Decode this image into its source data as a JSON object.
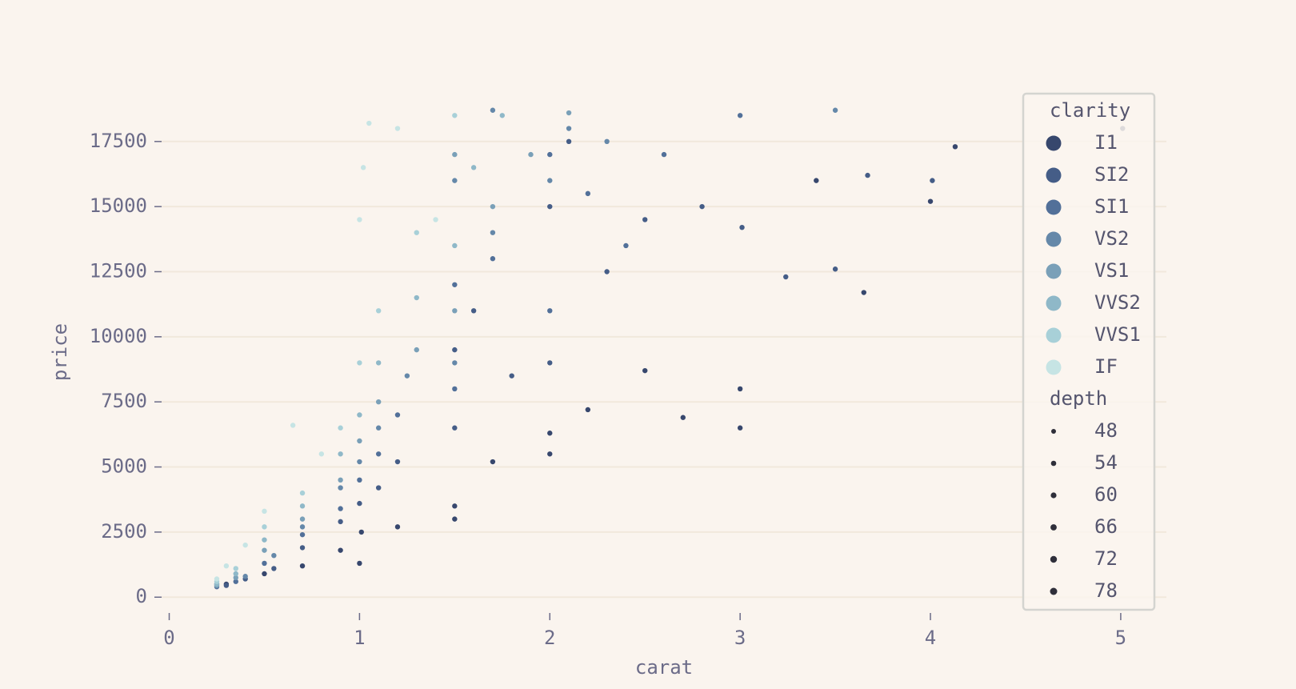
{
  "chart_data": {
    "type": "scatter",
    "x_label": "carat",
    "y_label": "price",
    "xlim": [
      -0.04,
      5.24
    ],
    "ylim": [
      -300,
      19000
    ],
    "xticks": [
      0,
      1,
      2,
      3,
      4,
      5
    ],
    "yticks": [
      0,
      2500,
      5000,
      7500,
      10000,
      12500,
      15000,
      17500
    ],
    "grid": true,
    "legend_title": "clarity",
    "series": [
      {
        "name": "I1",
        "color": "#37476d",
        "x": [
          0.3,
          0.5,
          0.7,
          0.9,
          1.0,
          1.01,
          1.2,
          1.5,
          1.5,
          1.7,
          2.0,
          2.0,
          2.2,
          2.5,
          2.7,
          3.0,
          3.0,
          3.4,
          3.65,
          4.0,
          4.13,
          5.01
        ],
        "values": [
          500,
          900,
          1200,
          1800,
          1300,
          2500,
          2700,
          3000,
          3500,
          5200,
          5500,
          6300,
          7200,
          8700,
          6900,
          8000,
          6500,
          16000,
          11700,
          15200,
          17300,
          18000
        ]
      },
      {
        "name": "SI2",
        "color": "#455d87",
        "x": [
          0.3,
          0.4,
          0.55,
          0.7,
          0.9,
          1.0,
          1.1,
          1.2,
          1.5,
          1.5,
          1.6,
          1.8,
          2.0,
          2.0,
          2.1,
          2.3,
          2.5,
          2.8,
          3.01,
          3.24,
          3.5,
          3.67,
          4.01
        ],
        "values": [
          450,
          700,
          1100,
          1900,
          2900,
          3600,
          4200,
          5200,
          6500,
          9500,
          11000,
          8500,
          9000,
          15000,
          17500,
          12500,
          14500,
          15000,
          14200,
          12300,
          12600,
          16200,
          16000
        ]
      },
      {
        "name": "SI1",
        "color": "#527099",
        "x": [
          0.25,
          0.35,
          0.5,
          0.7,
          0.9,
          1.0,
          1.1,
          1.2,
          1.5,
          1.5,
          1.7,
          2.0,
          2.0,
          2.2,
          2.4,
          2.6,
          3.0
        ],
        "values": [
          400,
          600,
          1300,
          2400,
          3400,
          4500,
          5500,
          7000,
          8000,
          12000,
          13000,
          11000,
          17000,
          15500,
          13500,
          17000,
          18500
        ]
      },
      {
        "name": "VS2",
        "color": "#6588a9",
        "x": [
          0.25,
          0.4,
          0.55,
          0.7,
          0.9,
          1.0,
          1.1,
          1.25,
          1.5,
          1.5,
          1.7,
          1.7,
          2.0,
          2.1,
          2.3,
          3.5
        ],
        "values": [
          500,
          800,
          1600,
          2700,
          4200,
          5200,
          6500,
          8500,
          9000,
          16000,
          14000,
          18700,
          16000,
          18000,
          17500,
          18700
        ]
      },
      {
        "name": "VS1",
        "color": "#7aa0b8",
        "x": [
          0.25,
          0.35,
          0.5,
          0.7,
          0.9,
          1.0,
          1.1,
          1.3,
          1.5,
          1.5,
          1.7,
          1.9,
          2.1
        ],
        "values": [
          450,
          750,
          1800,
          3000,
          4500,
          6000,
          7500,
          9500,
          11000,
          17000,
          15000,
          17000,
          18600
        ]
      },
      {
        "name": "VVS2",
        "color": "#8fb8c8",
        "x": [
          0.25,
          0.35,
          0.5,
          0.7,
          0.9,
          1.0,
          1.1,
          1.3,
          1.5,
          1.6,
          1.75
        ],
        "values": [
          500,
          900,
          2200,
          3500,
          5500,
          7000,
          9000,
          11500,
          13500,
          16500,
          18500
        ]
      },
      {
        "name": "VVS1",
        "color": "#a8d0d8",
        "x": [
          0.25,
          0.35,
          0.5,
          0.7,
          0.9,
          1.0,
          1.1,
          1.3,
          1.5
        ],
        "values": [
          600,
          1100,
          2700,
          4000,
          6500,
          9000,
          11000,
          14000,
          18500
        ]
      },
      {
        "name": "IF",
        "color": "#c6e4e4",
        "x": [
          0.25,
          0.3,
          0.4,
          0.5,
          0.65,
          0.8,
          1.0,
          1.02,
          1.05,
          1.2,
          1.4
        ],
        "values": [
          700,
          1200,
          2000,
          3300,
          6600,
          5500,
          14500,
          16500,
          18200,
          18000,
          14500
        ]
      }
    ],
    "size_legend": {
      "title": "depth",
      "values": [
        48,
        54,
        60,
        66,
        72,
        78
      ]
    }
  }
}
